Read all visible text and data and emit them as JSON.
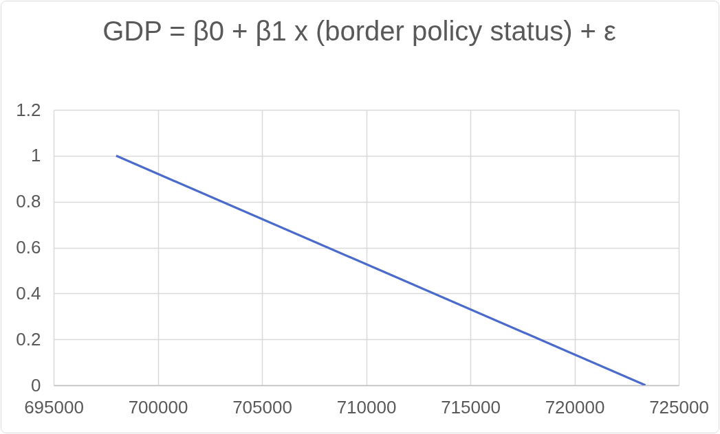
{
  "chart_data": {
    "type": "line",
    "title": "GDP = β0 + β1 x (border policy status) + ε",
    "x": [
      698000,
      723400
    ],
    "series": [
      {
        "color": "#4a6bcb",
        "values": [
          1,
          0
        ]
      }
    ],
    "xlim": [
      695000,
      725000
    ],
    "xticks": [
      695000,
      700000,
      705000,
      710000,
      715000,
      720000,
      725000
    ],
    "ylim": [
      0,
      1.2
    ],
    "yticks": [
      0,
      0.2,
      0.4,
      0.6,
      0.8,
      1,
      1.2
    ],
    "grid": true
  }
}
